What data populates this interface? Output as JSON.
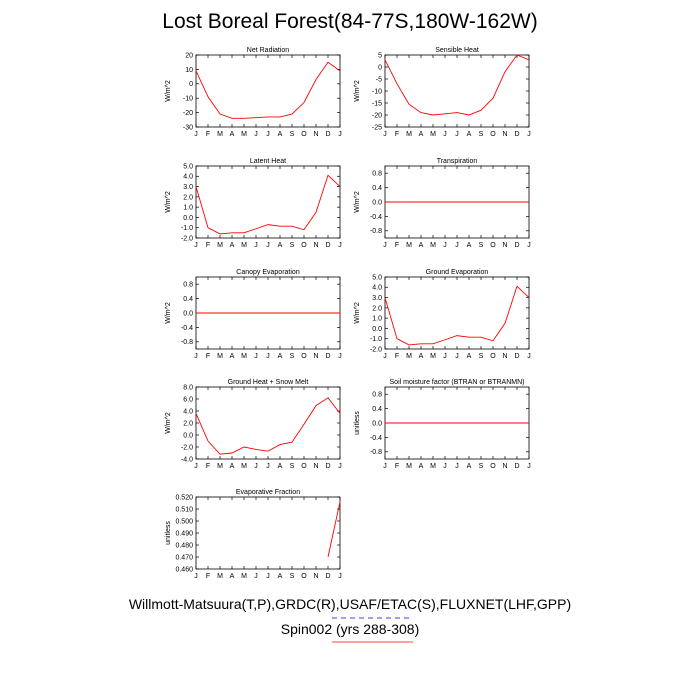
{
  "title": "Lost Boreal Forest(84-77S,180W-162W)",
  "legend": {
    "obs": "Willmott-Matsuura(T,P),GRDC(R),USAF/ETAC(S),FLUXNET(LHF,GPP)",
    "model": "Spin002 (yrs 288-308)"
  },
  "colors": {
    "model_line": "#ff0000",
    "obs_line": "#0000cc",
    "axis": "#000000"
  },
  "chart_data": [
    {
      "type": "line",
      "title": "Net Radiation",
      "ylabel": "W/m^2",
      "categories": [
        "J",
        "F",
        "M",
        "A",
        "M",
        "J",
        "J",
        "A",
        "S",
        "O",
        "N",
        "D",
        "J"
      ],
      "ylim": [
        -30,
        20
      ],
      "yticks": [
        20,
        10,
        0,
        -10,
        -20,
        -30
      ],
      "ytick_labels": [
        "20",
        "10",
        "0",
        "-10",
        "-20",
        "-30"
      ],
      "series": [
        {
          "values": [
            9,
            -9,
            -21,
            -24,
            -24,
            -23.5,
            -23,
            -23,
            -21,
            -13,
            3,
            15,
            9
          ]
        }
      ]
    },
    {
      "type": "line",
      "title": "Sensible Heat",
      "ylabel": "W/m^2",
      "categories": [
        "J",
        "F",
        "M",
        "A",
        "M",
        "J",
        "J",
        "A",
        "S",
        "O",
        "N",
        "D",
        "J"
      ],
      "ylim": [
        -25,
        5
      ],
      "yticks": [
        5,
        0,
        -5,
        -10,
        -15,
        -20,
        -25
      ],
      "ytick_labels": [
        "5",
        "0",
        "-5",
        "-10",
        "-15",
        "-20",
        "-25"
      ],
      "series": [
        {
          "values": [
            3,
            -7,
            -15.5,
            -19,
            -20,
            -19.5,
            -19,
            -20,
            -18,
            -13,
            -2,
            5,
            3
          ]
        }
      ]
    },
    {
      "type": "line",
      "title": "Latent Heat",
      "ylabel": "W/m^2",
      "categories": [
        "J",
        "F",
        "M",
        "A",
        "M",
        "J",
        "J",
        "A",
        "S",
        "O",
        "N",
        "D",
        "J"
      ],
      "ylim": [
        -2.0,
        5.0
      ],
      "yticks": [
        5.0,
        4.0,
        3.0,
        2.0,
        1.0,
        0.0,
        -1.0,
        -2.0
      ],
      "ytick_labels": [
        "5.0",
        "4.0",
        "3.0",
        "2.0",
        "1.0",
        "0.0",
        "-1.0",
        "-2.0"
      ],
      "series": [
        {
          "values": [
            3.0,
            -1.0,
            -1.6,
            -1.5,
            -1.5,
            -1.1,
            -0.7,
            -0.85,
            -0.85,
            -1.2,
            0.5,
            4.1,
            3.0
          ]
        }
      ]
    },
    {
      "type": "line",
      "title": "Transpiration",
      "ylabel": "W/m^2",
      "categories": [
        "J",
        "F",
        "M",
        "A",
        "M",
        "J",
        "J",
        "A",
        "S",
        "O",
        "N",
        "D",
        "J"
      ],
      "ylim": [
        -1,
        1
      ],
      "yticks": [
        0.8,
        0.4,
        0.0,
        -0.4,
        -0.8
      ],
      "ytick_labels": [
        "0.8",
        "0.4",
        "0.0",
        "-0.4",
        "-0.8"
      ],
      "series": [
        {
          "values": [
            0,
            0,
            0,
            0,
            0,
            0,
            0,
            0,
            0,
            0,
            0,
            0,
            0
          ]
        }
      ]
    },
    {
      "type": "line",
      "title": "Canopy Evaporation",
      "ylabel": "W/m^2",
      "categories": [
        "J",
        "F",
        "M",
        "A",
        "M",
        "J",
        "J",
        "A",
        "S",
        "O",
        "N",
        "D",
        "J"
      ],
      "ylim": [
        -1,
        1
      ],
      "yticks": [
        0.8,
        0.4,
        0.0,
        -0.4,
        -0.8
      ],
      "ytick_labels": [
        "0.8",
        "0.4",
        "0.0",
        "-0.4",
        "-0.8"
      ],
      "series": [
        {
          "values": [
            0,
            0,
            0,
            0,
            0,
            0,
            0,
            0,
            0,
            0,
            0,
            0,
            0
          ]
        }
      ]
    },
    {
      "type": "line",
      "title": "Ground Evaporation",
      "ylabel": "W/m^2",
      "categories": [
        "J",
        "F",
        "M",
        "A",
        "M",
        "J",
        "J",
        "A",
        "S",
        "O",
        "N",
        "D",
        "J"
      ],
      "ylim": [
        -2.0,
        5.0
      ],
      "yticks": [
        5.0,
        4.0,
        3.0,
        2.0,
        1.0,
        0.0,
        -1.0,
        -2.0
      ],
      "ytick_labels": [
        "5.0",
        "4.0",
        "3.0",
        "2.0",
        "1.0",
        "0.0",
        "-1.0",
        "-2.0"
      ],
      "series": [
        {
          "values": [
            3.0,
            -1.0,
            -1.6,
            -1.5,
            -1.5,
            -1.1,
            -0.7,
            -0.85,
            -0.85,
            -1.2,
            0.5,
            4.1,
            3.0
          ]
        }
      ]
    },
    {
      "type": "line",
      "title": "Ground Heat + Snow Melt",
      "ylabel": "W/m^2",
      "categories": [
        "J",
        "F",
        "M",
        "A",
        "M",
        "J",
        "J",
        "A",
        "S",
        "O",
        "N",
        "D",
        "J"
      ],
      "ylim": [
        -4.0,
        8.0
      ],
      "yticks": [
        8.0,
        6.0,
        4.0,
        2.0,
        0.0,
        -2.0,
        -4.0
      ],
      "ytick_labels": [
        "8.0",
        "6.0",
        "4.0",
        "2.0",
        "0.0",
        "-2.0",
        "-4.0"
      ],
      "series": [
        {
          "values": [
            3.6,
            -1.0,
            -3.2,
            -3.0,
            -2.0,
            -2.4,
            -2.7,
            -1.6,
            -1.2,
            1.8,
            4.9,
            6.2,
            3.6
          ]
        }
      ]
    },
    {
      "type": "line",
      "title": "Soil moisture factor (BTRAN or BTRANMN)",
      "ylabel": "unitless",
      "categories": [
        "J",
        "F",
        "M",
        "A",
        "M",
        "J",
        "J",
        "A",
        "S",
        "O",
        "N",
        "D",
        "J"
      ],
      "ylim": [
        -1,
        1
      ],
      "yticks": [
        0.8,
        0.4,
        0.0,
        -0.4,
        -0.8
      ],
      "ytick_labels": [
        "0.8",
        "0.4",
        "0.0",
        "-0.4",
        "-0.8"
      ],
      "series": [
        {
          "values": [
            0,
            0,
            0,
            0,
            0,
            0,
            0,
            0,
            0,
            0,
            0,
            0,
            0
          ]
        }
      ]
    },
    {
      "type": "line",
      "title": "Evaporative Fraction",
      "ylabel": "unitless",
      "categories": [
        "J",
        "F",
        "M",
        "A",
        "M",
        "J",
        "J",
        "A",
        "S",
        "O",
        "N",
        "D",
        "J"
      ],
      "ylim": [
        0.46,
        0.52
      ],
      "yticks": [
        0.52,
        0.51,
        0.5,
        0.49,
        0.48,
        0.47,
        0.46
      ],
      "ytick_labels": [
        "0.520",
        "0.510",
        "0.500",
        "0.490",
        "0.480",
        "0.470",
        "0.460"
      ],
      "series": [
        {
          "values": [
            null,
            null,
            null,
            null,
            null,
            null,
            null,
            null,
            null,
            null,
            null,
            0.47,
            0.516
          ]
        }
      ]
    }
  ]
}
